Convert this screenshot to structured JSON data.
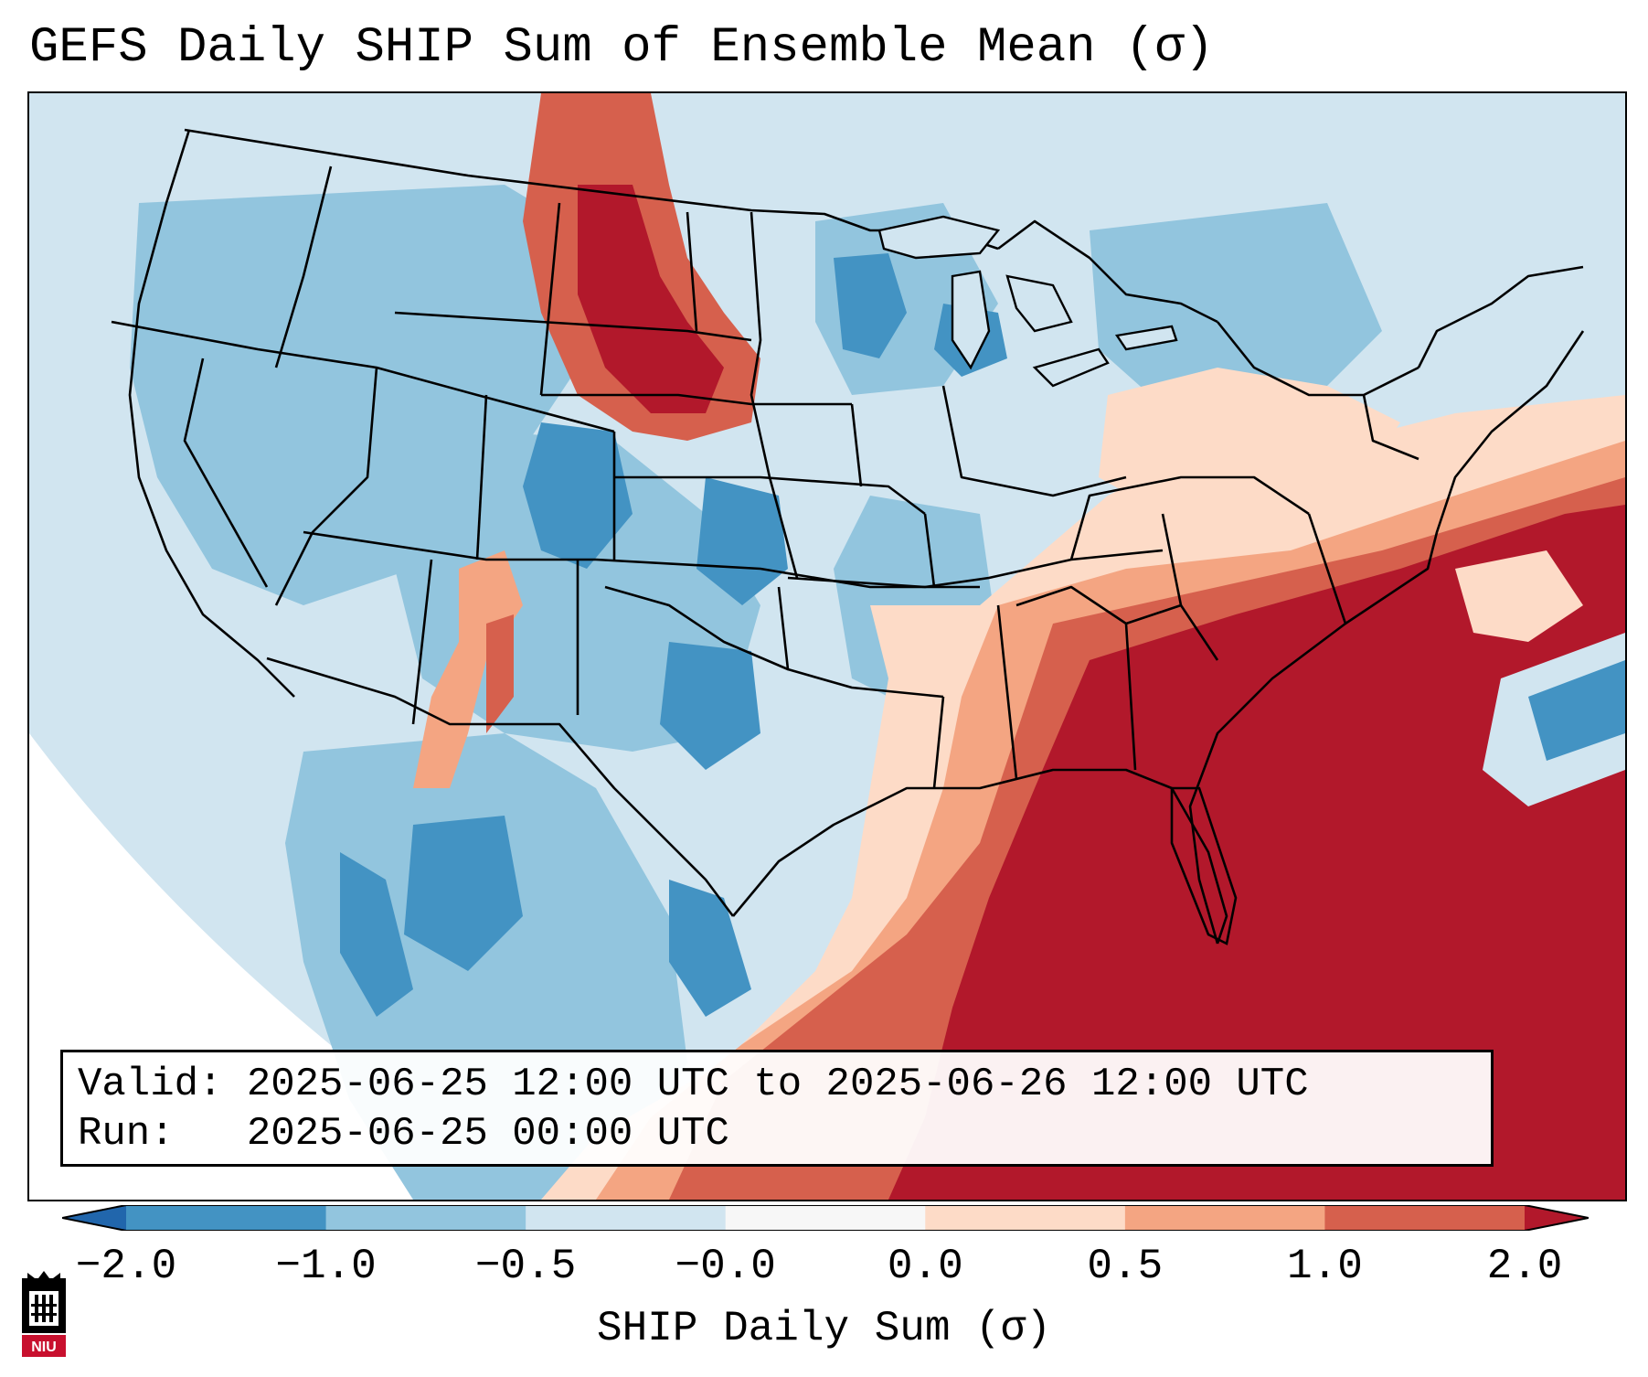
{
  "title": "GEFS Daily SHIP Sum of Ensemble Mean (σ)",
  "info": {
    "valid_line": "Valid: 2025-06-25 12:00 UTC to 2025-06-26 12:00 UTC",
    "run_line": "Run:   2025-06-25 00:00 UTC"
  },
  "colorbar": {
    "label": "SHIP Daily Sum (σ)",
    "ticks": [
      "−2.0",
      "−1.0",
      "−0.5",
      "−0.0",
      "0.0",
      "0.5",
      "1.0",
      "2.0"
    ],
    "bins": [
      {
        "range": "< -2.0",
        "color": "#2166ac"
      },
      {
        "range": "-2.0 to -1.0",
        "color": "#4393c3"
      },
      {
        "range": "-1.0 to -0.5",
        "color": "#92c5de"
      },
      {
        "range": "-0.5 to 0.0",
        "color": "#d1e5f0"
      },
      {
        "range": "0.0",
        "color": "#f7f7f7"
      },
      {
        "range": "0.0 to 0.5",
        "color": "#fddbc7"
      },
      {
        "range": "0.5 to 1.0",
        "color": "#f4a582"
      },
      {
        "range": "1.0 to 2.0",
        "color": "#d6604d"
      },
      {
        "range": "> 2.0",
        "color": "#b2182b"
      }
    ],
    "extend": "both"
  },
  "map": {
    "region": "Continental United States",
    "projection": "Lambert conformal",
    "features": [
      "state borders",
      "country borders",
      "coastlines",
      "Great Lakes"
    ]
  },
  "logo": {
    "text": "NIU",
    "icon": "niu-logo-icon"
  }
}
